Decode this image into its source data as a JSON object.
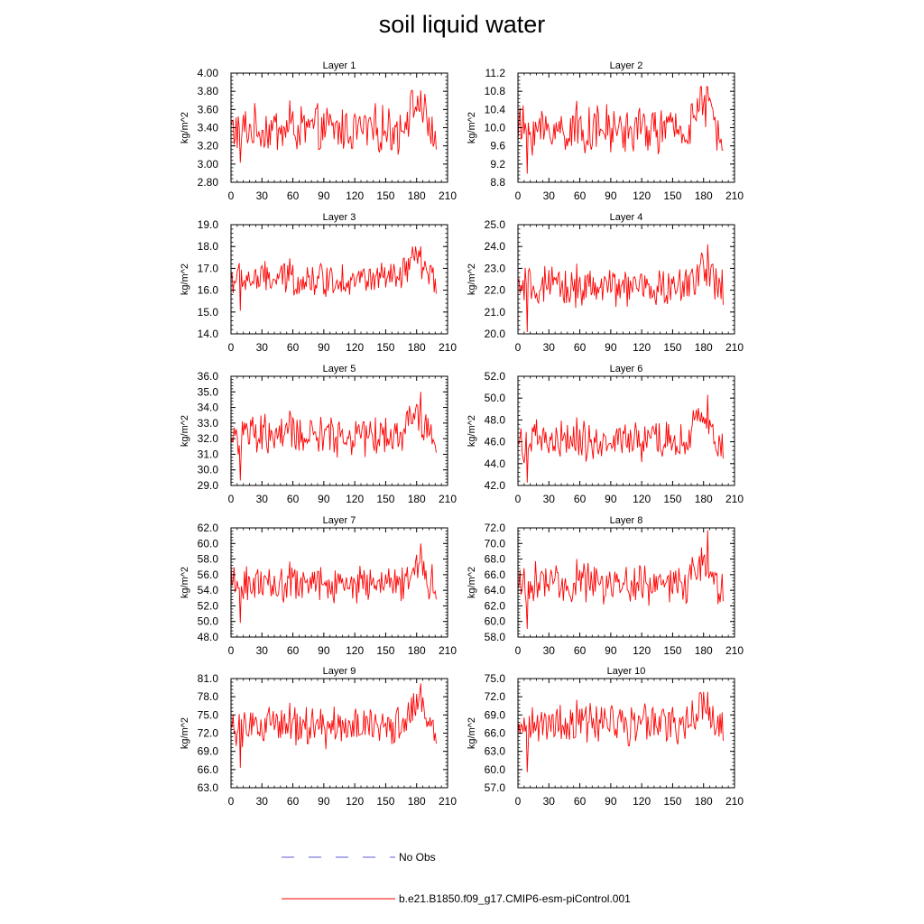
{
  "figure": {
    "title": "soil liquid water",
    "legend": [
      {
        "label": "No Obs",
        "color": "#5b5bd6",
        "style": "dashed"
      },
      {
        "label": "b.e21.B1850.f09_g17.CMIP6-esm-piControl.001",
        "color": "#ff0000",
        "style": "solid"
      }
    ]
  },
  "chart_data": [
    {
      "type": "line",
      "title": "Layer 1",
      "ylabel": "kg/m^2",
      "ylim": [
        2.8,
        4.0
      ],
      "yticks": [
        2.8,
        3.0,
        3.2,
        3.4,
        3.6,
        3.8,
        4.0
      ],
      "ytick_labels": [
        "2.80",
        "3.00",
        "3.20",
        "3.40",
        "3.60",
        "3.80",
        "4.00"
      ],
      "xlim": [
        0,
        210
      ],
      "xticks": [
        0,
        30,
        60,
        90,
        120,
        150,
        180,
        210
      ],
      "series": [
        {
          "color": "#ff0000",
          "base": 3.38,
          "amp": 0.2,
          "min": 3.0,
          "max": 3.81
        }
      ]
    },
    {
      "type": "line",
      "title": "Layer 2",
      "ylabel": "kg/m^2",
      "ylim": [
        8.8,
        11.2
      ],
      "yticks": [
        8.8,
        9.2,
        9.6,
        10.0,
        10.4,
        10.8,
        11.2
      ],
      "ytick_labels": [
        "8.8",
        "9.2",
        "9.6",
        "10.0",
        "10.4",
        "10.8",
        "11.2"
      ],
      "xlim": [
        0,
        210
      ],
      "xticks": [
        0,
        30,
        60,
        90,
        120,
        150,
        180,
        210
      ],
      "series": [
        {
          "color": "#ff0000",
          "base": 9.95,
          "amp": 0.4,
          "min": 8.95,
          "max": 10.9
        }
      ]
    },
    {
      "type": "line",
      "title": "Layer 3",
      "ylabel": "kg/m^2",
      "ylim": [
        14.0,
        19.0
      ],
      "yticks": [
        14,
        15,
        16,
        17,
        18,
        19
      ],
      "ytick_labels": [
        "14.0",
        "15.0",
        "16.0",
        "17.0",
        "18.0",
        "19.0"
      ],
      "xlim": [
        0,
        210
      ],
      "xticks": [
        0,
        30,
        60,
        90,
        120,
        150,
        180,
        210
      ],
      "series": [
        {
          "color": "#ff0000",
          "base": 16.5,
          "amp": 0.6,
          "min": 15.0,
          "max": 18.0
        }
      ]
    },
    {
      "type": "line",
      "title": "Layer 4",
      "ylabel": "kg/m^2",
      "ylim": [
        20.0,
        25.0
      ],
      "yticks": [
        20,
        21,
        22,
        23,
        24,
        25
      ],
      "ytick_labels": [
        "20.0",
        "21.0",
        "22.0",
        "23.0",
        "24.0",
        "25.0"
      ],
      "xlim": [
        0,
        210
      ],
      "xticks": [
        0,
        30,
        60,
        90,
        120,
        150,
        180,
        210
      ],
      "series": [
        {
          "color": "#ff0000",
          "base": 22.1,
          "amp": 0.7,
          "min": 20.0,
          "max": 24.1
        }
      ]
    },
    {
      "type": "line",
      "title": "Layer 5",
      "ylabel": "kg/m^2",
      "ylim": [
        29.0,
        36.0
      ],
      "yticks": [
        29,
        30,
        31,
        32,
        33,
        34,
        35,
        36
      ],
      "ytick_labels": [
        "29.0",
        "30.0",
        "31.0",
        "32.0",
        "33.0",
        "34.0",
        "35.0",
        "36.0"
      ],
      "xlim": [
        0,
        210
      ],
      "xticks": [
        0,
        30,
        60,
        90,
        120,
        150,
        180,
        210
      ],
      "series": [
        {
          "color": "#ff0000",
          "base": 32.2,
          "amp": 1.0,
          "min": 29.2,
          "max": 35.0
        }
      ]
    },
    {
      "type": "line",
      "title": "Layer 6",
      "ylabel": "kg/m^2",
      "ylim": [
        42.0,
        52.0
      ],
      "yticks": [
        42,
        44,
        46,
        48,
        50,
        52
      ],
      "ytick_labels": [
        "42.0",
        "44.0",
        "46.0",
        "48.0",
        "50.0",
        "52.0"
      ],
      "xlim": [
        0,
        210
      ],
      "xticks": [
        0,
        30,
        60,
        90,
        120,
        150,
        180,
        210
      ],
      "series": [
        {
          "color": "#ff0000",
          "base": 46.0,
          "amp": 1.4,
          "min": 42.1,
          "max": 50.3
        }
      ]
    },
    {
      "type": "line",
      "title": "Layer 7",
      "ylabel": "kg/m^2",
      "ylim": [
        48.0,
        62.0
      ],
      "yticks": [
        48,
        50,
        52,
        54,
        56,
        58,
        60,
        62
      ],
      "ytick_labels": [
        "48.0",
        "50.0",
        "52.0",
        "54.0",
        "56.0",
        "58.0",
        "60.0",
        "62.0"
      ],
      "xlim": [
        0,
        210
      ],
      "xticks": [
        0,
        30,
        60,
        90,
        120,
        150,
        180,
        210
      ],
      "series": [
        {
          "color": "#ff0000",
          "base": 54.8,
          "amp": 1.8,
          "min": 49.6,
          "max": 60.0
        }
      ]
    },
    {
      "type": "line",
      "title": "Layer 8",
      "ylabel": "kg/m^2",
      "ylim": [
        58.0,
        72.0
      ],
      "yticks": [
        58,
        60,
        62,
        64,
        66,
        68,
        70,
        72
      ],
      "ytick_labels": [
        "58.0",
        "60.0",
        "62.0",
        "64.0",
        "66.0",
        "68.0",
        "70.0",
        "72.0"
      ],
      "xlim": [
        0,
        210
      ],
      "xticks": [
        0,
        30,
        60,
        90,
        120,
        150,
        180,
        210
      ],
      "series": [
        {
          "color": "#ff0000",
          "base": 64.8,
          "amp": 2.0,
          "min": 58.8,
          "max": 71.7
        }
      ]
    },
    {
      "type": "line",
      "title": "Layer 9",
      "ylabel": "kg/m^2",
      "ylim": [
        63.0,
        81.0
      ],
      "yticks": [
        63,
        66,
        69,
        72,
        75,
        78,
        81
      ],
      "ytick_labels": [
        "63.0",
        "66.0",
        "69.0",
        "72.0",
        "75.0",
        "78.0",
        "81.0"
      ],
      "xlim": [
        0,
        210
      ],
      "xticks": [
        0,
        30,
        60,
        90,
        120,
        150,
        180,
        210
      ],
      "series": [
        {
          "color": "#ff0000",
          "base": 73.0,
          "amp": 2.5,
          "min": 66.0,
          "max": 80.2
        }
      ]
    },
    {
      "type": "line",
      "title": "Layer 10",
      "ylabel": "kg/m^2",
      "ylim": [
        57.0,
        75.0
      ],
      "yticks": [
        57,
        60,
        63,
        66,
        69,
        72,
        75
      ],
      "ytick_labels": [
        "57.0",
        "60.0",
        "63.0",
        "66.0",
        "69.0",
        "72.0",
        "75.0"
      ],
      "xlim": [
        0,
        210
      ],
      "xticks": [
        0,
        30,
        60,
        90,
        120,
        150,
        180,
        210
      ],
      "series": [
        {
          "color": "#ff0000",
          "base": 67.5,
          "amp": 2.5,
          "min": 59.3,
          "max": 72.8
        }
      ]
    }
  ]
}
